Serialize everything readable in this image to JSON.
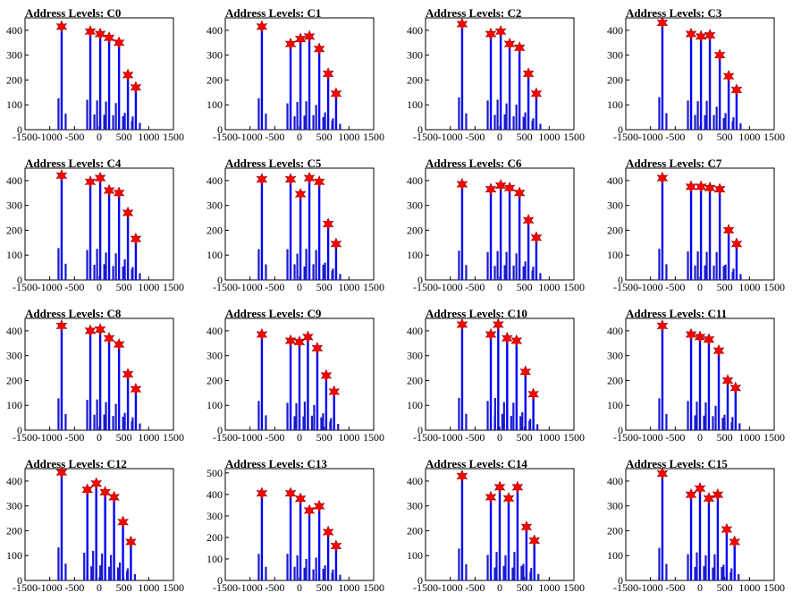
{
  "colors": {
    "histogram": "#1a1acc",
    "peak_line": "#0000ff",
    "marker": "#ff0000",
    "marker_edge": "#8b0000",
    "frame": "#000000"
  },
  "chart_data": [
    {
      "type": "bar",
      "title": "Address Levels: C0",
      "xlim": [
        -1500,
        1500
      ],
      "ylim": [
        0,
        450
      ],
      "xticks": [
        "-1500",
        "-1000",
        "-500",
        "0",
        "500",
        "1000",
        "1500"
      ],
      "yticks": [
        "0",
        "100",
        "200",
        "300",
        "400"
      ],
      "peaks": [
        {
          "x": -760,
          "y": 415
        },
        {
          "x": -180,
          "y": 395
        },
        {
          "x": 20,
          "y": 385
        },
        {
          "x": 200,
          "y": 370
        },
        {
          "x": 400,
          "y": 350
        },
        {
          "x": 580,
          "y": 220
        },
        {
          "x": 740,
          "y": 170
        }
      ]
    },
    {
      "type": "bar",
      "title": "Address Levels: C1",
      "xlim": [
        -1500,
        1500
      ],
      "ylim": [
        0,
        450
      ],
      "xticks": [
        "-1500",
        "-1000",
        "-500",
        "0",
        "500",
        "1000",
        "1500"
      ],
      "yticks": [
        "0",
        "100",
        "200",
        "300",
        "400"
      ],
      "peaks": [
        {
          "x": -760,
          "y": 415
        },
        {
          "x": -180,
          "y": 345
        },
        {
          "x": 20,
          "y": 365
        },
        {
          "x": 200,
          "y": 375
        },
        {
          "x": 400,
          "y": 325
        },
        {
          "x": 580,
          "y": 225
        },
        {
          "x": 740,
          "y": 145
        }
      ]
    },
    {
      "type": "bar",
      "title": "Address Levels: C2",
      "xlim": [
        -1500,
        1500
      ],
      "ylim": [
        0,
        450
      ],
      "xticks": [
        "-1500",
        "-1000",
        "-500",
        "0",
        "500",
        "1000",
        "1500"
      ],
      "yticks": [
        "0",
        "100",
        "200",
        "300",
        "400"
      ],
      "peaks": [
        {
          "x": -760,
          "y": 425
        },
        {
          "x": -180,
          "y": 385
        },
        {
          "x": 20,
          "y": 395
        },
        {
          "x": 200,
          "y": 345
        },
        {
          "x": 400,
          "y": 330
        },
        {
          "x": 580,
          "y": 225
        },
        {
          "x": 740,
          "y": 145
        }
      ]
    },
    {
      "type": "bar",
      "title": "Address Levels: C3",
      "xlim": [
        -1500,
        1500
      ],
      "ylim": [
        0,
        450
      ],
      "xticks": [
        "-1500",
        "-1000",
        "-500",
        "0",
        "500",
        "1000",
        "1500"
      ],
      "yticks": [
        "0",
        "100",
        "200",
        "300",
        "400"
      ],
      "peaks": [
        {
          "x": -760,
          "y": 430
        },
        {
          "x": -180,
          "y": 385
        },
        {
          "x": 20,
          "y": 375
        },
        {
          "x": 200,
          "y": 380
        },
        {
          "x": 400,
          "y": 300
        },
        {
          "x": 580,
          "y": 215
        },
        {
          "x": 740,
          "y": 160
        }
      ]
    },
    {
      "type": "bar",
      "title": "Address Levels: C4",
      "xlim": [
        -1500,
        1500
      ],
      "ylim": [
        0,
        450
      ],
      "xticks": [
        "-1500",
        "-1000",
        "-500",
        "0",
        "500",
        "1000",
        "1500"
      ],
      "yticks": [
        "0",
        "100",
        "200",
        "300",
        "400"
      ],
      "peaks": [
        {
          "x": -760,
          "y": 420
        },
        {
          "x": -180,
          "y": 395
        },
        {
          "x": 20,
          "y": 410
        },
        {
          "x": 200,
          "y": 360
        },
        {
          "x": 400,
          "y": 350
        },
        {
          "x": 580,
          "y": 270
        },
        {
          "x": 740,
          "y": 165
        }
      ]
    },
    {
      "type": "bar",
      "title": "Address Levels: C5",
      "xlim": [
        -1500,
        1500
      ],
      "ylim": [
        0,
        450
      ],
      "xticks": [
        "-1500",
        "-1000",
        "-500",
        "0",
        "500",
        "1000",
        "1500"
      ],
      "yticks": [
        "0",
        "100",
        "200",
        "300",
        "400"
      ],
      "peaks": [
        {
          "x": -760,
          "y": 405
        },
        {
          "x": -180,
          "y": 405
        },
        {
          "x": 20,
          "y": 345
        },
        {
          "x": 200,
          "y": 410
        },
        {
          "x": 400,
          "y": 395
        },
        {
          "x": 580,
          "y": 225
        },
        {
          "x": 740,
          "y": 145
        }
      ]
    },
    {
      "type": "bar",
      "title": "Address Levels: C6",
      "xlim": [
        -1500,
        1500
      ],
      "ylim": [
        0,
        450
      ],
      "xticks": [
        "-1500",
        "-1000",
        "-500",
        "0",
        "500",
        "1000",
        "1500"
      ],
      "yticks": [
        "0",
        "100",
        "200",
        "300",
        "400"
      ],
      "peaks": [
        {
          "x": -760,
          "y": 385
        },
        {
          "x": -180,
          "y": 365
        },
        {
          "x": 20,
          "y": 380
        },
        {
          "x": 200,
          "y": 370
        },
        {
          "x": 400,
          "y": 350
        },
        {
          "x": 580,
          "y": 240
        },
        {
          "x": 740,
          "y": 170
        }
      ]
    },
    {
      "type": "bar",
      "title": "Address Levels: C7",
      "xlim": [
        -1500,
        1500
      ],
      "ylim": [
        0,
        450
      ],
      "xticks": [
        "-1500",
        "-1000",
        "-500",
        "0",
        "500",
        "1000",
        "1500"
      ],
      "yticks": [
        "0",
        "100",
        "200",
        "300",
        "400"
      ],
      "peaks": [
        {
          "x": -760,
          "y": 410
        },
        {
          "x": -180,
          "y": 375
        },
        {
          "x": 20,
          "y": 375
        },
        {
          "x": 200,
          "y": 370
        },
        {
          "x": 400,
          "y": 365
        },
        {
          "x": 580,
          "y": 200
        },
        {
          "x": 740,
          "y": 145
        }
      ]
    },
    {
      "type": "bar",
      "title": "Address Levels: C8",
      "xlim": [
        -1500,
        1500
      ],
      "ylim": [
        0,
        450
      ],
      "xticks": [
        "-1500",
        "-1000",
        "-500",
        "0",
        "500",
        "1000",
        "1500"
      ],
      "yticks": [
        "0",
        "100",
        "200",
        "300",
        "400"
      ],
      "peaks": [
        {
          "x": -760,
          "y": 420
        },
        {
          "x": -180,
          "y": 400
        },
        {
          "x": 20,
          "y": 405
        },
        {
          "x": 200,
          "y": 370
        },
        {
          "x": 400,
          "y": 345
        },
        {
          "x": 580,
          "y": 225
        },
        {
          "x": 740,
          "y": 165
        }
      ]
    },
    {
      "type": "bar",
      "title": "Address Levels: C9",
      "xlim": [
        -1500,
        1500
      ],
      "ylim": [
        0,
        450
      ],
      "xticks": [
        "-1500",
        "-1000",
        "-500",
        "0",
        "500",
        "1000",
        "1500"
      ],
      "yticks": [
        "0",
        "100",
        "200",
        "300",
        "400"
      ],
      "peaks": [
        {
          "x": -760,
          "y": 385
        },
        {
          "x": -180,
          "y": 360
        },
        {
          "x": 0,
          "y": 355
        },
        {
          "x": 170,
          "y": 375
        },
        {
          "x": 360,
          "y": 330
        },
        {
          "x": 540,
          "y": 220
        },
        {
          "x": 700,
          "y": 155
        }
      ]
    },
    {
      "type": "bar",
      "title": "Address Levels: C10",
      "xlim": [
        -1500,
        1500
      ],
      "ylim": [
        0,
        450
      ],
      "xticks": [
        "-1500",
        "-1000",
        "-500",
        "0",
        "500",
        "1000",
        "1500"
      ],
      "yticks": [
        "0",
        "100",
        "200",
        "300",
        "400"
      ],
      "peaks": [
        {
          "x": -760,
          "y": 425
        },
        {
          "x": -180,
          "y": 385
        },
        {
          "x": -30,
          "y": 425
        },
        {
          "x": 150,
          "y": 370
        },
        {
          "x": 340,
          "y": 360
        },
        {
          "x": 520,
          "y": 235
        },
        {
          "x": 680,
          "y": 145
        }
      ]
    },
    {
      "type": "bar",
      "title": "Address Levels: C11",
      "xlim": [
        -1500,
        1500
      ],
      "ylim": [
        0,
        450
      ],
      "xticks": [
        "-1500",
        "-1000",
        "-500",
        "0",
        "500",
        "1000",
        "1500"
      ],
      "yticks": [
        "0",
        "100",
        "200",
        "300",
        "400"
      ],
      "peaks": [
        {
          "x": -760,
          "y": 420
        },
        {
          "x": -180,
          "y": 385
        },
        {
          "x": 0,
          "y": 375
        },
        {
          "x": 180,
          "y": 365
        },
        {
          "x": 380,
          "y": 320
        },
        {
          "x": 560,
          "y": 200
        },
        {
          "x": 720,
          "y": 170
        }
      ]
    },
    {
      "type": "bar",
      "title": "Address Levels: C12",
      "xlim": [
        -1500,
        1500
      ],
      "ylim": [
        0,
        450
      ],
      "xticks": [
        "-1500",
        "-1000",
        "-500",
        "0",
        "500",
        "1000",
        "1500"
      ],
      "yticks": [
        "0",
        "100",
        "200",
        "300",
        "400"
      ],
      "peaks": [
        {
          "x": -760,
          "y": 435
        },
        {
          "x": -240,
          "y": 365
        },
        {
          "x": -60,
          "y": 390
        },
        {
          "x": 120,
          "y": 355
        },
        {
          "x": 300,
          "y": 335
        },
        {
          "x": 480,
          "y": 235
        },
        {
          "x": 640,
          "y": 155
        }
      ]
    },
    {
      "type": "bar",
      "title": "Address Levels: C13",
      "xlim": [
        -1500,
        1500
      ],
      "ylim": [
        0,
        520
      ],
      "xticks": [
        "-1500",
        "-1000",
        "-500",
        "0",
        "500",
        "1000",
        "1500"
      ],
      "yticks": [
        "0",
        "100",
        "200",
        "300",
        "400",
        "500"
      ],
      "peaks": [
        {
          "x": -760,
          "y": 405
        },
        {
          "x": -180,
          "y": 405
        },
        {
          "x": 20,
          "y": 380
        },
        {
          "x": 200,
          "y": 325
        },
        {
          "x": 400,
          "y": 345
        },
        {
          "x": 580,
          "y": 225
        },
        {
          "x": 740,
          "y": 160
        }
      ]
    },
    {
      "type": "bar",
      "title": "Address Levels: C14",
      "xlim": [
        -1500,
        1500
      ],
      "ylim": [
        0,
        450
      ],
      "xticks": [
        "-1500",
        "-1000",
        "-500",
        "0",
        "500",
        "1000",
        "1500"
      ],
      "yticks": [
        "0",
        "100",
        "200",
        "300",
        "400"
      ],
      "peaks": [
        {
          "x": -760,
          "y": 420
        },
        {
          "x": -180,
          "y": 335
        },
        {
          "x": 0,
          "y": 375
        },
        {
          "x": 180,
          "y": 330
        },
        {
          "x": 360,
          "y": 375
        },
        {
          "x": 540,
          "y": 215
        },
        {
          "x": 700,
          "y": 160
        }
      ]
    },
    {
      "type": "bar",
      "title": "Address Levels: C15",
      "xlim": [
        -1500,
        1500
      ],
      "ylim": [
        0,
        450
      ],
      "xticks": [
        "-1500",
        "-1000",
        "-500",
        "0",
        "500",
        "1000",
        "1500"
      ],
      "yticks": [
        "0",
        "100",
        "200",
        "300",
        "400"
      ],
      "peaks": [
        {
          "x": -760,
          "y": 430
        },
        {
          "x": -180,
          "y": 345
        },
        {
          "x": 0,
          "y": 370
        },
        {
          "x": 180,
          "y": 330
        },
        {
          "x": 360,
          "y": 345
        },
        {
          "x": 540,
          "y": 205
        },
        {
          "x": 700,
          "y": 155
        }
      ]
    }
  ]
}
